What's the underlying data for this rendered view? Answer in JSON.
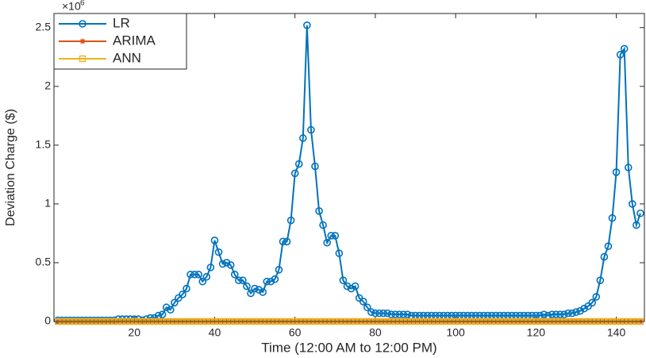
{
  "chart_data": {
    "type": "line",
    "x_label": "Time (12:00 AM to 12:00 PM)",
    "y_label": "Deviation Charge ($)",
    "y_multiplier": "×10",
    "y_multiplier_exp": "6",
    "xlim": [
      0,
      147
    ],
    "ylim": [
      0,
      2.62
    ],
    "xticks": [
      20,
      40,
      60,
      80,
      100,
      120,
      140
    ],
    "yticks": [
      0,
      0.5,
      1,
      1.5,
      2,
      2.5
    ],
    "legend": "upper left",
    "x": [
      1,
      2,
      3,
      4,
      5,
      6,
      7,
      8,
      9,
      10,
      11,
      12,
      13,
      14,
      15,
      16,
      17,
      18,
      19,
      20,
      21,
      22,
      23,
      24,
      25,
      26,
      27,
      28,
      29,
      30,
      31,
      32,
      33,
      34,
      35,
      36,
      37,
      38,
      39,
      40,
      41,
      42,
      43,
      44,
      45,
      46,
      47,
      48,
      49,
      50,
      51,
      52,
      53,
      54,
      55,
      56,
      57,
      58,
      59,
      60,
      61,
      62,
      63,
      64,
      65,
      66,
      67,
      68,
      69,
      70,
      71,
      72,
      73,
      74,
      75,
      76,
      77,
      78,
      79,
      80,
      81,
      82,
      83,
      84,
      85,
      86,
      87,
      88,
      89,
      90,
      91,
      92,
      93,
      94,
      95,
      96,
      97,
      98,
      99,
      100,
      101,
      102,
      103,
      104,
      105,
      106,
      107,
      108,
      109,
      110,
      111,
      112,
      113,
      114,
      115,
      116,
      117,
      118,
      119,
      120,
      121,
      122,
      123,
      124,
      125,
      126,
      127,
      128,
      129,
      130,
      131,
      132,
      133,
      134,
      135,
      136,
      137,
      138,
      139,
      140,
      141,
      142,
      143,
      144,
      145,
      146
    ],
    "series": [
      {
        "name": "LR",
        "color": "#0072bd",
        "marker": "circle",
        "values": [
          0.01,
          0.01,
          0.01,
          0.01,
          0.01,
          0.01,
          0.01,
          0.01,
          0.01,
          0.01,
          0.01,
          0.01,
          0.01,
          0.01,
          0.01,
          0.02,
          0.02,
          0.02,
          0.02,
          0.02,
          0.02,
          0.01,
          0.02,
          0.03,
          0.03,
          0.05,
          0.06,
          0.12,
          0.1,
          0.16,
          0.2,
          0.23,
          0.28,
          0.4,
          0.4,
          0.4,
          0.34,
          0.38,
          0.46,
          0.69,
          0.59,
          0.49,
          0.5,
          0.48,
          0.4,
          0.35,
          0.35,
          0.3,
          0.24,
          0.28,
          0.27,
          0.25,
          0.34,
          0.34,
          0.36,
          0.44,
          0.68,
          0.68,
          0.86,
          1.26,
          1.34,
          1.56,
          2.52,
          1.63,
          1.32,
          0.94,
          0.82,
          0.67,
          0.73,
          0.73,
          0.58,
          0.35,
          0.3,
          0.28,
          0.3,
          0.2,
          0.17,
          0.12,
          0.08,
          0.07,
          0.07,
          0.07,
          0.07,
          0.06,
          0.06,
          0.06,
          0.06,
          0.06,
          0.05,
          0.05,
          0.05,
          0.05,
          0.05,
          0.05,
          0.05,
          0.05,
          0.05,
          0.05,
          0.05,
          0.05,
          0.05,
          0.05,
          0.05,
          0.05,
          0.05,
          0.05,
          0.05,
          0.05,
          0.05,
          0.05,
          0.05,
          0.05,
          0.05,
          0.05,
          0.05,
          0.05,
          0.05,
          0.05,
          0.05,
          0.05,
          0.05,
          0.06,
          0.05,
          0.06,
          0.06,
          0.06,
          0.06,
          0.07,
          0.07,
          0.08,
          0.09,
          0.11,
          0.13,
          0.16,
          0.21,
          0.35,
          0.55,
          0.64,
          0.88,
          1.27,
          2.27,
          2.32,
          1.31,
          1.0,
          0.82,
          0.92
        ]
      },
      {
        "name": "ARIMA",
        "color": "#d95319",
        "marker": "asterisk",
        "values": [
          0,
          0,
          0,
          0,
          0,
          0,
          0,
          0,
          0,
          0,
          0,
          0,
          0,
          0,
          0,
          0,
          0,
          0,
          0,
          0,
          0,
          0,
          0,
          0,
          0,
          0,
          0,
          0,
          0,
          0,
          0,
          0,
          0,
          0,
          0,
          0,
          0,
          0,
          0,
          0,
          0,
          0,
          0,
          0,
          0,
          0,
          0,
          0,
          0,
          0,
          0,
          0,
          0,
          0,
          0,
          0,
          0,
          0,
          0,
          0,
          0,
          0,
          0,
          0,
          0,
          0,
          0,
          0,
          0,
          0,
          0,
          0,
          0,
          0,
          0,
          0,
          0,
          0,
          0,
          0,
          0,
          0,
          0,
          0,
          0,
          0,
          0,
          0,
          0,
          0,
          0,
          0,
          0,
          0,
          0,
          0,
          0,
          0,
          0,
          0,
          0,
          0,
          0,
          0,
          0,
          0,
          0,
          0,
          0,
          0,
          0,
          0,
          0,
          0,
          0,
          0,
          0,
          0,
          0,
          0,
          0,
          0,
          0,
          0,
          0,
          0,
          0,
          0,
          0,
          0,
          0,
          0,
          0,
          0,
          0,
          0,
          0,
          0,
          0,
          0,
          0,
          0,
          0,
          0,
          0,
          0
        ]
      },
      {
        "name": "ANN",
        "color": "#edb120",
        "marker": "square",
        "values": [
          0,
          0,
          0,
          0,
          0,
          0,
          0,
          0,
          0,
          0,
          0,
          0,
          0,
          0,
          0,
          0,
          0,
          0,
          0,
          0,
          0,
          0,
          0,
          0,
          0,
          0,
          0,
          0,
          0,
          0,
          0,
          0,
          0,
          0,
          0,
          0,
          0,
          0,
          0,
          0,
          0,
          0,
          0,
          0,
          0,
          0,
          0,
          0,
          0,
          0,
          0,
          0,
          0,
          0,
          0,
          0,
          0,
          0,
          0,
          0,
          0,
          0,
          0,
          0,
          0,
          0,
          0,
          0,
          0,
          0,
          0,
          0,
          0,
          0,
          0,
          0,
          0,
          0,
          0,
          0,
          0,
          0,
          0,
          0,
          0,
          0,
          0,
          0,
          0,
          0,
          0,
          0,
          0,
          0,
          0,
          0,
          0,
          0,
          0,
          0,
          0,
          0,
          0,
          0,
          0,
          0,
          0,
          0,
          0,
          0,
          0,
          0,
          0,
          0,
          0,
          0,
          0,
          0,
          0,
          0,
          0,
          0,
          0,
          0,
          0,
          0,
          0,
          0,
          0,
          0,
          0,
          0,
          0,
          0,
          0,
          0,
          0,
          0,
          0,
          0,
          0,
          0,
          0,
          0,
          0,
          0
        ]
      }
    ]
  }
}
